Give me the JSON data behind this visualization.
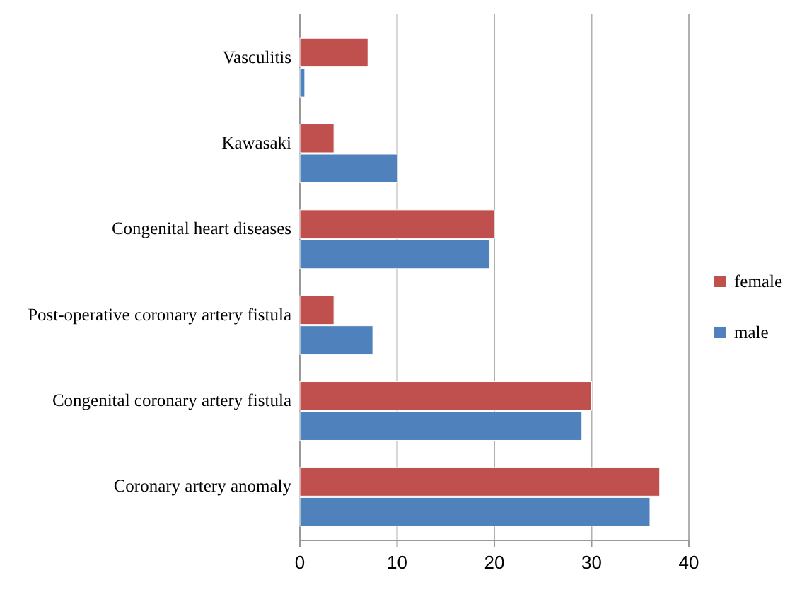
{
  "chart_data": {
    "type": "bar",
    "orientation": "horizontal",
    "categories": [
      "Vasculitis",
      "Kawasaki",
      "Congenital heart diseases",
      "Post-operative coronary artery fistula",
      "Congenital coronary artery fistula",
      "Coronary artery anomaly"
    ],
    "series": [
      {
        "name": "female",
        "color": "#c0504d",
        "values": [
          7,
          3.5,
          20,
          3.5,
          30,
          37
        ]
      },
      {
        "name": "male",
        "color": "#4f81bd",
        "values": [
          0.5,
          10,
          19.5,
          7.5,
          29,
          36
        ]
      }
    ],
    "xlim": [
      0,
      40
    ],
    "xticks": [
      0,
      10,
      20,
      30,
      40
    ],
    "grid": "x",
    "legend": "right"
  }
}
